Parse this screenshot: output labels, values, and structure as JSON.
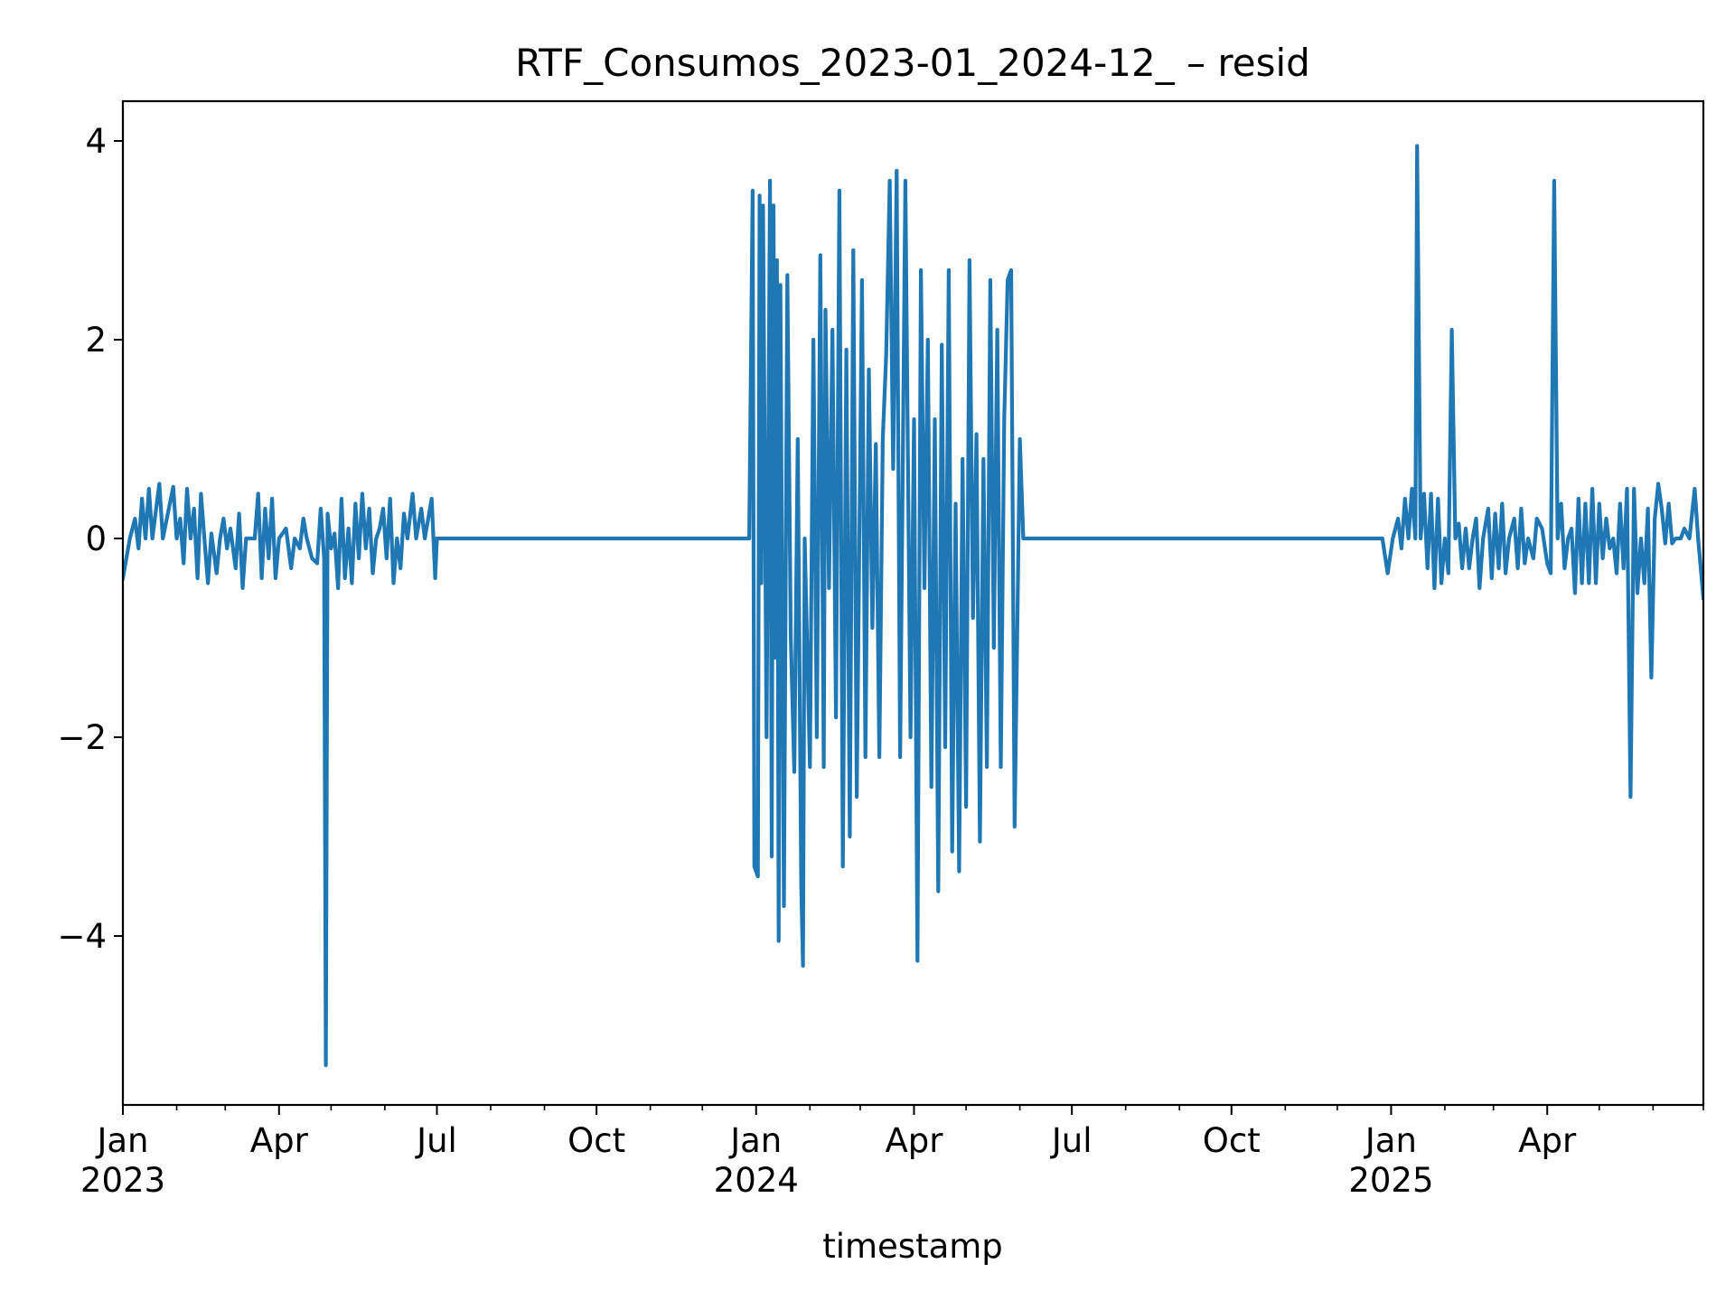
{
  "chart_data": {
    "type": "line",
    "title": "RTF_Consumos_2023-01_2024-12_ – resid",
    "xlabel": "timestamp",
    "ylabel": "",
    "xlim": [
      "2023-01-01",
      "2025-06-30"
    ],
    "ylim": [
      -5.7,
      4.4
    ],
    "grid": false,
    "legend": "none",
    "colors": {
      "line": "#1f77b4",
      "axes": "#000000",
      "background": "#ffffff"
    },
    "y_ticks": [
      -4,
      -2,
      0,
      2,
      4
    ],
    "y_tick_labels": [
      "−4",
      "−2",
      "0",
      "2",
      "4"
    ],
    "x_major_ticks": [
      {
        "date": "2023-01-01",
        "label": "Jan",
        "year": "2023"
      },
      {
        "date": "2023-04-01",
        "label": "Apr",
        "year": ""
      },
      {
        "date": "2023-07-01",
        "label": "Jul",
        "year": ""
      },
      {
        "date": "2023-10-01",
        "label": "Oct",
        "year": ""
      },
      {
        "date": "2024-01-01",
        "label": "Jan",
        "year": "2024"
      },
      {
        "date": "2024-04-01",
        "label": "Apr",
        "year": ""
      },
      {
        "date": "2024-07-01",
        "label": "Jul",
        "year": ""
      },
      {
        "date": "2024-10-01",
        "label": "Oct",
        "year": ""
      },
      {
        "date": "2025-01-01",
        "label": "Jan",
        "year": "2025"
      },
      {
        "date": "2025-04-01",
        "label": "Apr",
        "year": ""
      }
    ],
    "x_minor_ticks": [
      "2023-02-01",
      "2023-03-01",
      "2023-05-01",
      "2023-06-01",
      "2023-08-01",
      "2023-09-01",
      "2023-11-01",
      "2023-12-01",
      "2024-02-01",
      "2024-03-01",
      "2024-05-01",
      "2024-06-01",
      "2024-08-01",
      "2024-09-01",
      "2024-11-01",
      "2024-12-01",
      "2025-02-01",
      "2025-03-01",
      "2025-05-01",
      "2025-06-01",
      "2025-06-30"
    ],
    "series": [
      {
        "name": "",
        "points": [
          [
            "2023-01-01",
            -0.4
          ],
          [
            "2023-01-05",
            0
          ],
          [
            "2023-01-08",
            0.2
          ],
          [
            "2023-01-10",
            -0.1
          ],
          [
            "2023-01-12",
            0.4
          ],
          [
            "2023-01-14",
            0
          ],
          [
            "2023-01-16",
            0.5
          ],
          [
            "2023-01-18",
            0
          ],
          [
            "2023-01-22",
            0.55
          ],
          [
            "2023-01-24",
            0
          ],
          [
            "2023-01-30",
            0.52
          ],
          [
            "2023-02-01",
            0
          ],
          [
            "2023-02-03",
            0.2
          ],
          [
            "2023-02-05",
            -0.25
          ],
          [
            "2023-02-07",
            0.5
          ],
          [
            "2023-02-09",
            0
          ],
          [
            "2023-02-11",
            0.3
          ],
          [
            "2023-02-13",
            -0.4
          ],
          [
            "2023-02-15",
            0.45
          ],
          [
            "2023-02-17",
            0
          ],
          [
            "2023-02-19",
            -0.45
          ],
          [
            "2023-02-21",
            0.05
          ],
          [
            "2023-02-24",
            -0.35
          ],
          [
            "2023-02-26",
            0
          ],
          [
            "2023-02-28",
            0.2
          ],
          [
            "2023-03-02",
            -0.1
          ],
          [
            "2023-03-04",
            0.1
          ],
          [
            "2023-03-07",
            -0.3
          ],
          [
            "2023-03-09",
            0.25
          ],
          [
            "2023-03-11",
            -0.5
          ],
          [
            "2023-03-13",
            0
          ],
          [
            "2023-03-18",
            0
          ],
          [
            "2023-03-20",
            0.45
          ],
          [
            "2023-03-22",
            -0.4
          ],
          [
            "2023-03-24",
            0.3
          ],
          [
            "2023-03-26",
            -0.2
          ],
          [
            "2023-03-28",
            0.4
          ],
          [
            "2023-03-30",
            -0.4
          ],
          [
            "2023-04-01",
            0
          ],
          [
            "2023-04-05",
            0.1
          ],
          [
            "2023-04-08",
            -0.3
          ],
          [
            "2023-04-10",
            0
          ],
          [
            "2023-04-13",
            -0.1
          ],
          [
            "2023-04-15",
            0.2
          ],
          [
            "2023-04-17",
            0
          ],
          [
            "2023-04-20",
            -0.2
          ],
          [
            "2023-04-23",
            -0.25
          ],
          [
            "2023-04-25",
            0.3
          ],
          [
            "2023-04-27",
            -0.2
          ],
          [
            "2023-04-28",
            -5.3
          ],
          [
            "2023-04-29",
            0.25
          ],
          [
            "2023-05-01",
            -0.1
          ],
          [
            "2023-05-03",
            0.05
          ],
          [
            "2023-05-05",
            -0.5
          ],
          [
            "2023-05-07",
            0.4
          ],
          [
            "2023-05-09",
            -0.4
          ],
          [
            "2023-05-11",
            0.1
          ],
          [
            "2023-05-13",
            -0.45
          ],
          [
            "2023-05-15",
            0.35
          ],
          [
            "2023-05-17",
            -0.2
          ],
          [
            "2023-05-19",
            0.45
          ],
          [
            "2023-05-21",
            -0.1
          ],
          [
            "2023-05-23",
            0.3
          ],
          [
            "2023-05-25",
            -0.35
          ],
          [
            "2023-05-27",
            0
          ],
          [
            "2023-05-29",
            0.1
          ],
          [
            "2023-05-31",
            0.3
          ],
          [
            "2023-06-02",
            -0.2
          ],
          [
            "2023-06-04",
            0.4
          ],
          [
            "2023-06-06",
            -0.45
          ],
          [
            "2023-06-08",
            0
          ],
          [
            "2023-06-10",
            -0.3
          ],
          [
            "2023-06-12",
            0.25
          ],
          [
            "2023-06-14",
            0
          ],
          [
            "2023-06-17",
            0.45
          ],
          [
            "2023-06-19",
            0
          ],
          [
            "2023-06-22",
            0.3
          ],
          [
            "2023-06-24",
            0
          ],
          [
            "2023-06-28",
            0.4
          ],
          [
            "2023-06-30",
            -0.4
          ],
          [
            "2023-07-01",
            0
          ],
          [
            "2023-12-28",
            0
          ],
          [
            "2023-12-30",
            3.5
          ],
          [
            "2023-12-31",
            -3.3
          ],
          [
            "2024-01-02",
            -3.4
          ],
          [
            "2024-01-03",
            3.45
          ],
          [
            "2024-01-04",
            -0.45
          ],
          [
            "2024-01-05",
            3.35
          ],
          [
            "2024-01-07",
            -2.0
          ],
          [
            "2024-01-09",
            3.6
          ],
          [
            "2024-01-10",
            -3.2
          ],
          [
            "2024-01-11",
            3.35
          ],
          [
            "2024-01-12",
            -1.2
          ],
          [
            "2024-01-13",
            2.8
          ],
          [
            "2024-01-14",
            -4.05
          ],
          [
            "2024-01-15",
            2.55
          ],
          [
            "2024-01-17",
            -3.7
          ],
          [
            "2024-01-19",
            2.65
          ],
          [
            "2024-01-21",
            -1.0
          ],
          [
            "2024-01-23",
            -2.35
          ],
          [
            "2024-01-25",
            1.0
          ],
          [
            "2024-01-27",
            -3.5
          ],
          [
            "2024-01-28",
            -4.3
          ],
          [
            "2024-01-29",
            0
          ],
          [
            "2024-02-01",
            -2.3
          ],
          [
            "2024-02-03",
            2.0
          ],
          [
            "2024-02-05",
            -2.0
          ],
          [
            "2024-02-07",
            2.85
          ],
          [
            "2024-02-09",
            -2.3
          ],
          [
            "2024-02-10",
            2.3
          ],
          [
            "2024-02-12",
            -0.5
          ],
          [
            "2024-02-14",
            2.1
          ],
          [
            "2024-02-16",
            -1.8
          ],
          [
            "2024-02-18",
            3.5
          ],
          [
            "2024-02-20",
            -3.3
          ],
          [
            "2024-02-22",
            1.9
          ],
          [
            "2024-02-24",
            -3.0
          ],
          [
            "2024-02-26",
            2.9
          ],
          [
            "2024-02-28",
            -2.6
          ],
          [
            "2024-03-02",
            2.6
          ],
          [
            "2024-03-04",
            -2.2
          ],
          [
            "2024-03-06",
            1.7
          ],
          [
            "2024-03-08",
            -0.9
          ],
          [
            "2024-03-10",
            0.95
          ],
          [
            "2024-03-12",
            -2.2
          ],
          [
            "2024-03-14",
            1.0
          ],
          [
            "2024-03-16",
            1.85
          ],
          [
            "2024-03-18",
            3.6
          ],
          [
            "2024-03-20",
            0.7
          ],
          [
            "2024-03-22",
            3.7
          ],
          [
            "2024-03-24",
            -2.2
          ],
          [
            "2024-03-27",
            3.6
          ],
          [
            "2024-03-30",
            -2.0
          ],
          [
            "2024-04-01",
            1.2
          ],
          [
            "2024-04-03",
            -4.25
          ],
          [
            "2024-04-05",
            2.7
          ],
          [
            "2024-04-07",
            -0.5
          ],
          [
            "2024-04-09",
            2.0
          ],
          [
            "2024-04-11",
            -2.5
          ],
          [
            "2024-04-13",
            1.2
          ],
          [
            "2024-04-15",
            -3.55
          ],
          [
            "2024-04-17",
            1.95
          ],
          [
            "2024-04-19",
            -2.1
          ],
          [
            "2024-04-21",
            2.7
          ],
          [
            "2024-04-23",
            -3.15
          ],
          [
            "2024-04-25",
            0.35
          ],
          [
            "2024-04-27",
            -3.35
          ],
          [
            "2024-04-29",
            0.8
          ],
          [
            "2024-05-01",
            -2.7
          ],
          [
            "2024-05-03",
            2.8
          ],
          [
            "2024-05-05",
            -0.8
          ],
          [
            "2024-05-07",
            1.05
          ],
          [
            "2024-05-09",
            -3.05
          ],
          [
            "2024-05-11",
            0.8
          ],
          [
            "2024-05-13",
            -2.3
          ],
          [
            "2024-05-15",
            2.6
          ],
          [
            "2024-05-17",
            -1.1
          ],
          [
            "2024-05-19",
            2.1
          ],
          [
            "2024-05-21",
            -2.3
          ],
          [
            "2024-05-23",
            1.2
          ],
          [
            "2024-05-25",
            2.6
          ],
          [
            "2024-05-27",
            2.7
          ],
          [
            "2024-05-29",
            -2.9
          ],
          [
            "2024-06-01",
            1.0
          ],
          [
            "2024-06-03",
            0
          ],
          [
            "2024-12-27",
            0
          ],
          [
            "2024-12-30",
            -0.35
          ],
          [
            "2025-01-02",
            0
          ],
          [
            "2025-01-05",
            0.2
          ],
          [
            "2025-01-07",
            -0.1
          ],
          [
            "2025-01-09",
            0.4
          ],
          [
            "2025-01-11",
            0
          ],
          [
            "2025-01-13",
            0.5
          ],
          [
            "2025-01-15",
            0
          ],
          [
            "2025-01-16",
            3.95
          ],
          [
            "2025-01-18",
            0
          ],
          [
            "2025-01-20",
            0.45
          ],
          [
            "2025-01-22",
            -0.3
          ],
          [
            "2025-01-24",
            0.45
          ],
          [
            "2025-01-26",
            -0.5
          ],
          [
            "2025-01-28",
            0.4
          ],
          [
            "2025-01-30",
            -0.45
          ],
          [
            "2025-02-01",
            0
          ],
          [
            "2025-02-03",
            -0.35
          ],
          [
            "2025-02-05",
            2.1
          ],
          [
            "2025-02-07",
            0
          ],
          [
            "2025-02-09",
            0.15
          ],
          [
            "2025-02-11",
            -0.3
          ],
          [
            "2025-02-13",
            0.1
          ],
          [
            "2025-02-15",
            -0.3
          ],
          [
            "2025-02-17",
            0
          ],
          [
            "2025-02-19",
            0.2
          ],
          [
            "2025-02-21",
            -0.5
          ],
          [
            "2025-02-23",
            0
          ],
          [
            "2025-02-26",
            0.3
          ],
          [
            "2025-02-28",
            -0.4
          ],
          [
            "2025-03-02",
            0.25
          ],
          [
            "2025-03-04",
            -0.3
          ],
          [
            "2025-03-06",
            0.35
          ],
          [
            "2025-03-08",
            -0.35
          ],
          [
            "2025-03-10",
            0
          ],
          [
            "2025-03-13",
            0.2
          ],
          [
            "2025-03-15",
            -0.3
          ],
          [
            "2025-03-17",
            0.3
          ],
          [
            "2025-03-19",
            -0.25
          ],
          [
            "2025-03-21",
            0
          ],
          [
            "2025-03-24",
            -0.2
          ],
          [
            "2025-03-26",
            0.2
          ],
          [
            "2025-03-29",
            0.1
          ],
          [
            "2025-04-01",
            -0.25
          ],
          [
            "2025-04-03",
            -0.35
          ],
          [
            "2025-04-05",
            3.6
          ],
          [
            "2025-04-07",
            0
          ],
          [
            "2025-04-09",
            0.35
          ],
          [
            "2025-04-11",
            -0.3
          ],
          [
            "2025-04-13",
            0
          ],
          [
            "2025-04-15",
            0.1
          ],
          [
            "2025-04-17",
            -0.55
          ],
          [
            "2025-04-19",
            0.4
          ],
          [
            "2025-04-21",
            -0.45
          ],
          [
            "2025-04-23",
            0.35
          ],
          [
            "2025-04-25",
            -0.45
          ],
          [
            "2025-04-27",
            0.5
          ],
          [
            "2025-04-29",
            -0.45
          ],
          [
            "2025-05-01",
            0.35
          ],
          [
            "2025-05-03",
            -0.2
          ],
          [
            "2025-05-05",
            0.2
          ],
          [
            "2025-05-07",
            -0.1
          ],
          [
            "2025-05-09",
            0
          ],
          [
            "2025-05-11",
            -0.35
          ],
          [
            "2025-05-13",
            0.35
          ],
          [
            "2025-05-15",
            -0.3
          ],
          [
            "2025-05-17",
            0.5
          ],
          [
            "2025-05-19",
            -2.6
          ],
          [
            "2025-05-21",
            0.5
          ],
          [
            "2025-05-23",
            -0.55
          ],
          [
            "2025-05-25",
            0
          ],
          [
            "2025-05-27",
            -0.45
          ],
          [
            "2025-05-29",
            0.3
          ],
          [
            "2025-05-31",
            -1.4
          ],
          [
            "2025-06-02",
            0.2
          ],
          [
            "2025-06-04",
            0.55
          ],
          [
            "2025-06-06",
            0.3
          ],
          [
            "2025-06-08",
            -0.05
          ],
          [
            "2025-06-10",
            0.35
          ],
          [
            "2025-06-12",
            -0.05
          ],
          [
            "2025-06-14",
            0
          ],
          [
            "2025-06-17",
            0
          ],
          [
            "2025-06-19",
            0.1
          ],
          [
            "2025-06-22",
            0
          ],
          [
            "2025-06-25",
            0.5
          ],
          [
            "2025-06-27",
            0
          ],
          [
            "2025-06-30",
            -0.6
          ]
        ]
      }
    ]
  }
}
